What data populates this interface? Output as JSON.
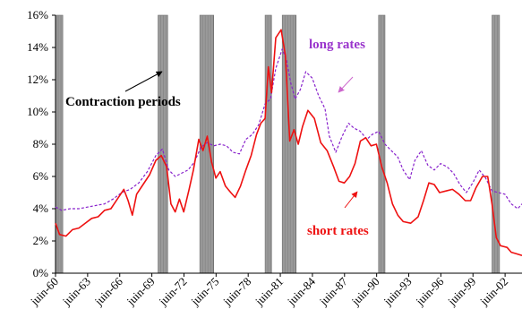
{
  "chart_data": {
    "type": "line",
    "title": "",
    "xlabel": "",
    "ylabel": "",
    "x_range": [
      1960.42,
      2004.0
    ],
    "ylim": [
      0,
      16
    ],
    "y_tick_values": [
      0,
      2,
      4,
      6,
      8,
      10,
      12,
      14,
      16
    ],
    "y_tick_labels": [
      "0%",
      "2%",
      "4%",
      "6%",
      "8%",
      "10%",
      "12%",
      "14%",
      "16%"
    ],
    "x_tick_labels": [
      "juin-60",
      "juin-63",
      "juin-66",
      "juin-69",
      "juin-72",
      "juin-75",
      "juin-78",
      "juin-81",
      "juin-84",
      "juin-87",
      "juin-90",
      "juin-93",
      "juin-96",
      "juin-99",
      "juin-02"
    ],
    "x_tick_values": [
      1960.42,
      1963.42,
      1966.42,
      1969.42,
      1972.42,
      1975.42,
      1978.42,
      1981.42,
      1984.42,
      1987.42,
      1990.42,
      1993.42,
      1996.42,
      1999.42,
      2002.42
    ],
    "grid": false,
    "contraction_periods": [
      [
        1960.42,
        1961.1
      ],
      [
        1970.0,
        1970.9
      ],
      [
        1973.9,
        1975.2
      ],
      [
        1980.0,
        1980.6
      ],
      [
        1981.6,
        1982.9
      ],
      [
        1990.6,
        1991.2
      ],
      [
        2001.2,
        2001.9
      ]
    ],
    "series": [
      {
        "name": "short rates",
        "color": "#ee1111",
        "style": "solid",
        "points": [
          [
            1960.42,
            3.1
          ],
          [
            1960.8,
            2.4
          ],
          [
            1961.4,
            2.3
          ],
          [
            1962.0,
            2.7
          ],
          [
            1962.6,
            2.8
          ],
          [
            1963.2,
            3.1
          ],
          [
            1963.8,
            3.4
          ],
          [
            1964.4,
            3.5
          ],
          [
            1965.0,
            3.9
          ],
          [
            1965.6,
            4.0
          ],
          [
            1966.2,
            4.6
          ],
          [
            1966.8,
            5.2
          ],
          [
            1967.2,
            4.5
          ],
          [
            1967.6,
            3.6
          ],
          [
            1968.0,
            4.9
          ],
          [
            1968.6,
            5.5
          ],
          [
            1969.2,
            6.1
          ],
          [
            1969.8,
            7.0
          ],
          [
            1970.3,
            7.3
          ],
          [
            1970.8,
            6.6
          ],
          [
            1971.2,
            4.3
          ],
          [
            1971.6,
            3.8
          ],
          [
            1972.0,
            4.6
          ],
          [
            1972.4,
            3.8
          ],
          [
            1972.9,
            5.2
          ],
          [
            1973.3,
            6.4
          ],
          [
            1973.8,
            8.3
          ],
          [
            1974.2,
            7.6
          ],
          [
            1974.6,
            8.5
          ],
          [
            1975.0,
            6.9
          ],
          [
            1975.4,
            5.9
          ],
          [
            1975.8,
            6.3
          ],
          [
            1976.3,
            5.4
          ],
          [
            1976.8,
            5.0
          ],
          [
            1977.2,
            4.7
          ],
          [
            1977.7,
            5.4
          ],
          [
            1978.2,
            6.4
          ],
          [
            1978.7,
            7.3
          ],
          [
            1979.2,
            8.6
          ],
          [
            1979.6,
            9.3
          ],
          [
            1980.0,
            9.6
          ],
          [
            1980.3,
            12.8
          ],
          [
            1980.6,
            11.2
          ],
          [
            1981.0,
            14.6
          ],
          [
            1981.5,
            15.1
          ],
          [
            1981.9,
            13.5
          ],
          [
            1982.3,
            8.2
          ],
          [
            1982.7,
            8.9
          ],
          [
            1983.1,
            8.0
          ],
          [
            1983.5,
            9.1
          ],
          [
            1984.0,
            10.1
          ],
          [
            1984.6,
            9.6
          ],
          [
            1985.2,
            8.1
          ],
          [
            1985.8,
            7.6
          ],
          [
            1986.4,
            6.6
          ],
          [
            1986.9,
            5.7
          ],
          [
            1987.4,
            5.6
          ],
          [
            1987.9,
            6.0
          ],
          [
            1988.4,
            6.8
          ],
          [
            1988.9,
            8.2
          ],
          [
            1989.4,
            8.4
          ],
          [
            1989.9,
            7.9
          ],
          [
            1990.4,
            8.0
          ],
          [
            1990.9,
            6.6
          ],
          [
            1991.4,
            5.6
          ],
          [
            1991.9,
            4.3
          ],
          [
            1992.4,
            3.6
          ],
          [
            1992.9,
            3.2
          ],
          [
            1993.6,
            3.1
          ],
          [
            1994.3,
            3.5
          ],
          [
            1994.8,
            4.5
          ],
          [
            1995.3,
            5.6
          ],
          [
            1995.8,
            5.5
          ],
          [
            1996.3,
            5.0
          ],
          [
            1996.9,
            5.1
          ],
          [
            1997.5,
            5.2
          ],
          [
            1998.1,
            4.9
          ],
          [
            1998.7,
            4.5
          ],
          [
            1999.2,
            4.5
          ],
          [
            1999.7,
            5.3
          ],
          [
            2000.3,
            6.0
          ],
          [
            2000.8,
            6.0
          ],
          [
            2001.2,
            4.3
          ],
          [
            2001.6,
            2.2
          ],
          [
            2002.0,
            1.7
          ],
          [
            2002.6,
            1.6
          ],
          [
            2003.0,
            1.3
          ],
          [
            2003.5,
            1.2
          ],
          [
            2004.0,
            1.1
          ]
        ]
      },
      {
        "name": "long rates",
        "color": "#8822cc",
        "style": "dashed",
        "points": [
          [
            1960.42,
            4.1
          ],
          [
            1961.0,
            3.9
          ],
          [
            1961.8,
            4.0
          ],
          [
            1962.6,
            4.0
          ],
          [
            1963.4,
            4.1
          ],
          [
            1964.2,
            4.2
          ],
          [
            1965.0,
            4.3
          ],
          [
            1965.8,
            4.6
          ],
          [
            1966.6,
            5.0
          ],
          [
            1967.4,
            5.2
          ],
          [
            1968.2,
            5.6
          ],
          [
            1969.0,
            6.3
          ],
          [
            1969.8,
            7.3
          ],
          [
            1970.4,
            7.7
          ],
          [
            1971.0,
            6.4
          ],
          [
            1971.6,
            6.0
          ],
          [
            1972.2,
            6.2
          ],
          [
            1972.8,
            6.4
          ],
          [
            1973.4,
            6.9
          ],
          [
            1974.0,
            7.8
          ],
          [
            1974.6,
            8.1
          ],
          [
            1975.2,
            7.9
          ],
          [
            1975.8,
            8.0
          ],
          [
            1976.4,
            7.9
          ],
          [
            1977.0,
            7.5
          ],
          [
            1977.6,
            7.4
          ],
          [
            1978.2,
            8.3
          ],
          [
            1978.8,
            8.6
          ],
          [
            1979.4,
            9.2
          ],
          [
            1980.0,
            10.5
          ],
          [
            1980.5,
            10.8
          ],
          [
            1981.0,
            12.7
          ],
          [
            1981.6,
            13.9
          ],
          [
            1982.0,
            13.2
          ],
          [
            1982.4,
            11.8
          ],
          [
            1982.8,
            10.8
          ],
          [
            1983.3,
            11.4
          ],
          [
            1983.8,
            12.5
          ],
          [
            1984.4,
            12.1
          ],
          [
            1985.0,
            11.0
          ],
          [
            1985.6,
            10.2
          ],
          [
            1986.0,
            8.5
          ],
          [
            1986.6,
            7.5
          ],
          [
            1987.2,
            8.5
          ],
          [
            1987.8,
            9.3
          ],
          [
            1988.3,
            9.0
          ],
          [
            1988.9,
            8.8
          ],
          [
            1989.5,
            8.3
          ],
          [
            1990.0,
            8.6
          ],
          [
            1990.6,
            8.8
          ],
          [
            1991.2,
            8.0
          ],
          [
            1991.8,
            7.6
          ],
          [
            1992.4,
            7.2
          ],
          [
            1992.9,
            6.4
          ],
          [
            1993.5,
            5.8
          ],
          [
            1994.0,
            7.0
          ],
          [
            1994.6,
            7.6
          ],
          [
            1995.2,
            6.7
          ],
          [
            1995.8,
            6.4
          ],
          [
            1996.4,
            6.8
          ],
          [
            1997.0,
            6.6
          ],
          [
            1997.6,
            6.2
          ],
          [
            1998.2,
            5.5
          ],
          [
            1998.8,
            5.0
          ],
          [
            1999.4,
            5.6
          ],
          [
            2000.0,
            6.4
          ],
          [
            2000.6,
            5.9
          ],
          [
            2001.2,
            5.1
          ],
          [
            2001.8,
            5.0
          ],
          [
            2002.4,
            4.9
          ],
          [
            2003.0,
            4.3
          ],
          [
            2003.6,
            4.0
          ],
          [
            2004.0,
            4.3
          ]
        ]
      }
    ],
    "annotations": [
      {
        "label": "Contraction periods",
        "color": "#000000"
      },
      {
        "label": "long rates",
        "color": "#9933cc"
      },
      {
        "label": "short rates",
        "color": "#ee1111"
      }
    ]
  }
}
